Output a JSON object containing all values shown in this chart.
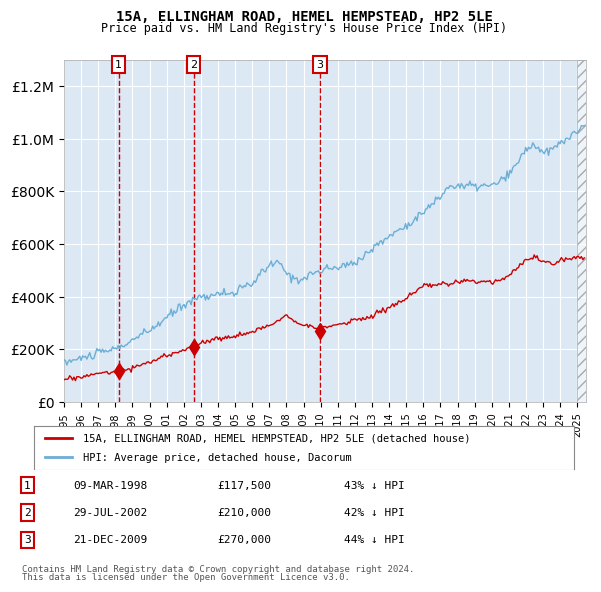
{
  "title": "15A, ELLINGHAM ROAD, HEMEL HEMPSTEAD, HP2 5LE",
  "subtitle": "Price paid vs. HM Land Registry's House Price Index (HPI)",
  "xlabel": "",
  "ylabel": "",
  "ylim": [
    0,
    1300000
  ],
  "xlim_start": 1995.0,
  "xlim_end": 2025.5,
  "bg_color": "#dce9f5",
  "plot_bg_color": "#dce9f5",
  "grid_color": "#ffffff",
  "red_line_color": "#cc0000",
  "blue_line_color": "#6baed6",
  "sale_marker_color": "#cc0000",
  "sale_points": [
    {
      "year": 1998.19,
      "value": 117500,
      "label": "1"
    },
    {
      "year": 2002.57,
      "value": 210000,
      "label": "2"
    },
    {
      "year": 2009.97,
      "value": 270000,
      "label": "3"
    }
  ],
  "vline_years": [
    1998.19,
    2002.57,
    2009.97
  ],
  "legend_entries": [
    "15A, ELLINGHAM ROAD, HEMEL HEMPSTEAD, HP2 5LE (detached house)",
    "HPI: Average price, detached house, Dacorum"
  ],
  "table_data": [
    {
      "num": "1",
      "date": "09-MAR-1998",
      "price": "£117,500",
      "hpi": "43% ↓ HPI"
    },
    {
      "num": "2",
      "date": "29-JUL-2002",
      "price": "£210,000",
      "hpi": "42% ↓ HPI"
    },
    {
      "num": "3",
      "date": "21-DEC-2009",
      "price": "£270,000",
      "hpi": "44% ↓ HPI"
    }
  ],
  "footnote1": "Contains HM Land Registry data © Crown copyright and database right 2024.",
  "footnote2": "This data is licensed under the Open Government Licence v3.0."
}
